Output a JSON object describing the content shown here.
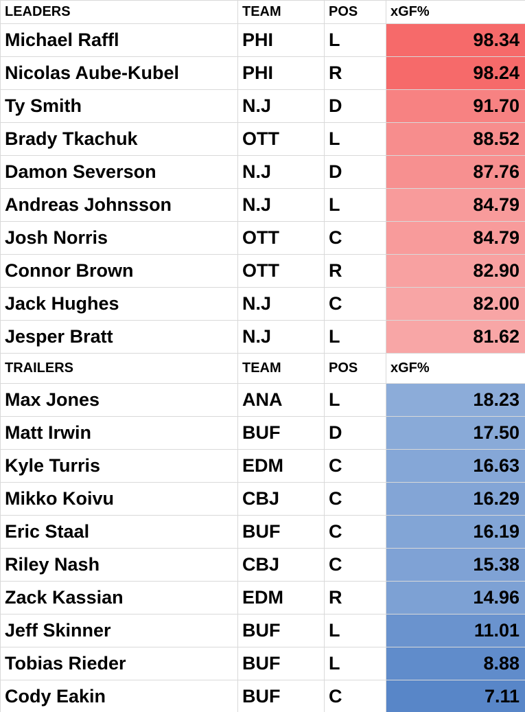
{
  "sections": [
    {
      "header": [
        "LEADERS",
        "TEAM",
        "POS",
        "xGF%"
      ],
      "rows": [
        [
          "Michael Raffl",
          "PHI",
          "L",
          "98.34"
        ],
        [
          "Nicolas Aube-Kubel",
          "PHI",
          "R",
          "98.24"
        ],
        [
          "Ty Smith",
          "N.J",
          "D",
          "91.70"
        ],
        [
          "Brady Tkachuk",
          "OTT",
          "L",
          "88.52"
        ],
        [
          "Damon Severson",
          "N.J",
          "D",
          "87.76"
        ],
        [
          "Andreas Johnsson",
          "N.J",
          "L",
          "84.79"
        ],
        [
          "Josh Norris",
          "OTT",
          "C",
          "84.79"
        ],
        [
          "Connor Brown",
          "OTT",
          "R",
          "82.90"
        ],
        [
          "Jack Hughes",
          "N.J",
          "C",
          "82.00"
        ],
        [
          "Jesper Bratt",
          "N.J",
          "L",
          "81.62"
        ]
      ]
    },
    {
      "header": [
        "TRAILERS",
        "TEAM",
        "POS",
        "xGF%"
      ],
      "rows": [
        [
          "Max Jones",
          "ANA",
          "L",
          "18.23"
        ],
        [
          "Matt Irwin",
          "BUF",
          "D",
          "17.50"
        ],
        [
          "Kyle Turris",
          "EDM",
          "C",
          "16.63"
        ],
        [
          "Mikko Koivu",
          "CBJ",
          "C",
          "16.29"
        ],
        [
          "Eric Staal",
          "BUF",
          "C",
          "16.19"
        ],
        [
          "Riley Nash",
          "CBJ",
          "C",
          "15.38"
        ],
        [
          "Zack Kassian",
          "EDM",
          "R",
          "14.96"
        ],
        [
          "Jeff Skinner",
          "BUF",
          "L",
          "11.01"
        ],
        [
          "Tobias Rieder",
          "BUF",
          "L",
          "8.88"
        ],
        [
          "Cody Eakin",
          "BUF",
          "C",
          "7.11"
        ]
      ]
    }
  ]
}
